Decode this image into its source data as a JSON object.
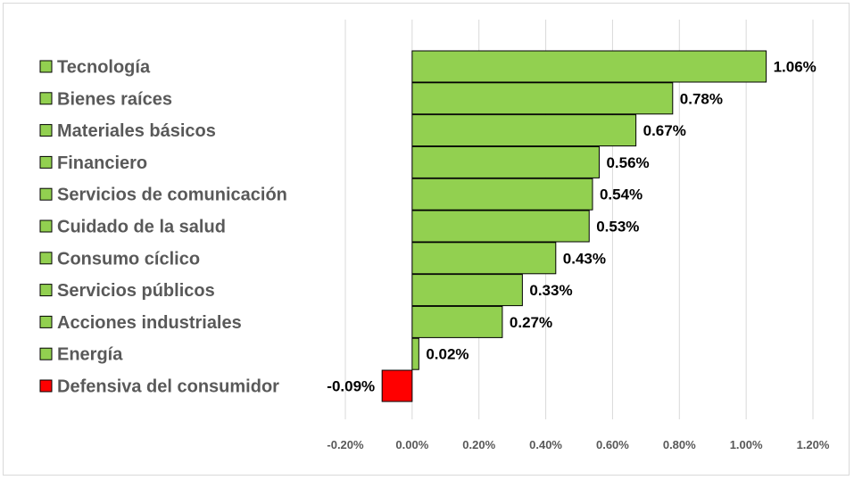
{
  "chart_data": {
    "type": "bar",
    "orientation": "horizontal",
    "categories": [
      "Tecnología",
      "Bienes raíces",
      "Materiales básicos",
      "Financiero",
      "Servicios de comunicación",
      "Cuidado de la salud",
      "Consumo cíclico",
      "Servicios públicos",
      "Acciones industriales",
      "Energía",
      "Defensiva del consumidor"
    ],
    "values": [
      1.06,
      0.78,
      0.67,
      0.56,
      0.54,
      0.53,
      0.43,
      0.33,
      0.27,
      0.02,
      -0.09
    ],
    "value_labels": [
      "1.06%",
      "0.78%",
      "0.67%",
      "0.56%",
      "0.54%",
      "0.53%",
      "0.43%",
      "0.33%",
      "0.27%",
      "0.02%",
      "-0.09%"
    ],
    "title": "",
    "xlabel": "",
    "ylabel": "",
    "xlim": [
      -0.2,
      1.2
    ],
    "x_ticks": [
      -0.2,
      0.0,
      0.2,
      0.4,
      0.6,
      0.8,
      1.0,
      1.2
    ],
    "x_tick_labels": [
      "-0.20%",
      "0.00%",
      "0.20%",
      "0.40%",
      "0.60%",
      "0.80%",
      "1.00%",
      "1.20%"
    ],
    "grid": "vertical",
    "legend": "left",
    "colors": {
      "positive": "#92d050",
      "negative": "#ff0000",
      "bar_border": "#000000",
      "grid": "#d9d9d9",
      "category_text": "#595959",
      "value_text": "#000000"
    }
  }
}
